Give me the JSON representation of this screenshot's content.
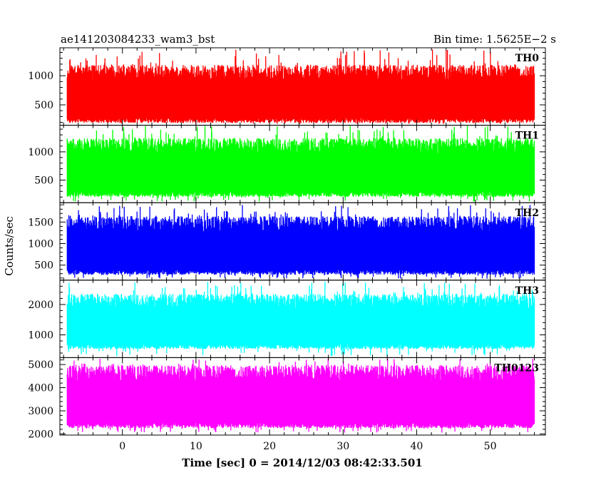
{
  "chart_data": {
    "type": "line",
    "title": "ae141203084233_wam3_bst",
    "subtitle": "Bin time: 1.5625E−2 s",
    "xlabel": "Time [sec] 0 = 2014/12/03 08:42:33.501",
    "ylabel": "Counts/sec",
    "xlim": [
      -8.5,
      57.5
    ],
    "data_xrange": [
      -7.5,
      56.0
    ],
    "x_ticks": [
      0,
      10,
      20,
      30,
      40,
      50
    ],
    "grid": false,
    "legend": "none",
    "panels": [
      {
        "name": "TH0",
        "color": "#ff0000",
        "ylim": [
          150,
          1480
        ],
        "y_ticks": [
          500,
          1000
        ],
        "approx_envelope": {
          "typical_low": 280,
          "typical_high": 1050,
          "min": 170,
          "max": 1450
        }
      },
      {
        "name": "TH1",
        "color": "#00ff00",
        "ylim": [
          100,
          1470
        ],
        "y_ticks": [
          500,
          1000
        ],
        "approx_envelope": {
          "typical_low": 300,
          "typical_high": 1100,
          "min": 120,
          "max": 1460
        }
      },
      {
        "name": "TH2",
        "color": "#0000ff",
        "ylim": [
          150,
          1950
        ],
        "y_ticks": [
          500,
          1000,
          1500
        ],
        "approx_envelope": {
          "typical_low": 400,
          "typical_high": 1450,
          "min": 180,
          "max": 1900
        }
      },
      {
        "name": "TH3",
        "color": "#00ffff",
        "ylim": [
          250,
          2800
        ],
        "y_ticks": [
          1000,
          2000
        ],
        "approx_envelope": {
          "typical_low": 700,
          "typical_high": 2100,
          "min": 300,
          "max": 2750
        }
      },
      {
        "name": "TH0123",
        "color": "#ff00ff",
        "ylim": [
          1950,
          5300
        ],
        "y_ticks": [
          2000,
          3000,
          4000,
          5000
        ],
        "approx_envelope": {
          "typical_low": 2500,
          "typical_high": 4600,
          "min": 2050,
          "max": 5250
        }
      }
    ]
  }
}
